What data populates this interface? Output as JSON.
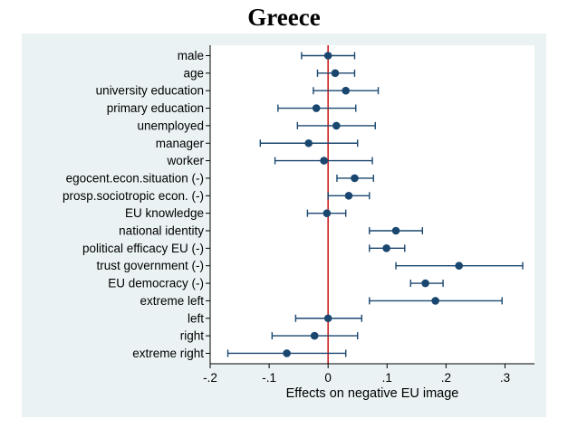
{
  "chart_data": {
    "type": "scatter",
    "subtype": "coefficient-plot",
    "title": "Greece",
    "xlabel": "Effects on negative EU image",
    "ylabel": "",
    "xlim": [
      -0.2,
      0.35
    ],
    "xticks": [
      -0.2,
      -0.1,
      0,
      0.1,
      0.2,
      0.3
    ],
    "xtick_labels": [
      "-.2",
      "-.1",
      "0",
      ".1",
      ".2",
      ".3"
    ],
    "reference_line": 0,
    "colors": {
      "marker": "#1a476f",
      "ref_line": "#cc2222",
      "panel": "#eaf2f3"
    },
    "series": [
      {
        "name": "male",
        "estimate": 0.0,
        "ci_low": -0.045,
        "ci_high": 0.045
      },
      {
        "name": "age",
        "estimate": 0.012,
        "ci_low": -0.018,
        "ci_high": 0.045
      },
      {
        "name": "university education",
        "estimate": 0.03,
        "ci_low": -0.025,
        "ci_high": 0.085
      },
      {
        "name": "primary education",
        "estimate": -0.02,
        "ci_low": -0.085,
        "ci_high": 0.047
      },
      {
        "name": "unemployed",
        "estimate": 0.014,
        "ci_low": -0.052,
        "ci_high": 0.08
      },
      {
        "name": "manager",
        "estimate": -0.033,
        "ci_low": -0.115,
        "ci_high": 0.05
      },
      {
        "name": "worker",
        "estimate": -0.007,
        "ci_low": -0.09,
        "ci_high": 0.075
      },
      {
        "name": "egocent.econ.situation (-)",
        "estimate": 0.045,
        "ci_low": 0.015,
        "ci_high": 0.077
      },
      {
        "name": "prosp.sociotropic econ. (-)",
        "estimate": 0.035,
        "ci_low": 0.0,
        "ci_high": 0.07
      },
      {
        "name": "EU knowledge",
        "estimate": -0.002,
        "ci_low": -0.035,
        "ci_high": 0.03
      },
      {
        "name": "national identity",
        "estimate": 0.115,
        "ci_low": 0.07,
        "ci_high": 0.16
      },
      {
        "name": "political efficacy EU (-)",
        "estimate": 0.099,
        "ci_low": 0.07,
        "ci_high": 0.13
      },
      {
        "name": "trust government (-)",
        "estimate": 0.222,
        "ci_low": 0.115,
        "ci_high": 0.33
      },
      {
        "name": "EU democracy (-)",
        "estimate": 0.165,
        "ci_low": 0.14,
        "ci_high": 0.195
      },
      {
        "name": "extreme left",
        "estimate": 0.182,
        "ci_low": 0.07,
        "ci_high": 0.295
      },
      {
        "name": "left",
        "estimate": 0.0,
        "ci_low": -0.055,
        "ci_high": 0.057
      },
      {
        "name": "right",
        "estimate": -0.023,
        "ci_low": -0.095,
        "ci_high": 0.05
      },
      {
        "name": "extreme right",
        "estimate": -0.07,
        "ci_low": -0.17,
        "ci_high": 0.03
      }
    ]
  }
}
